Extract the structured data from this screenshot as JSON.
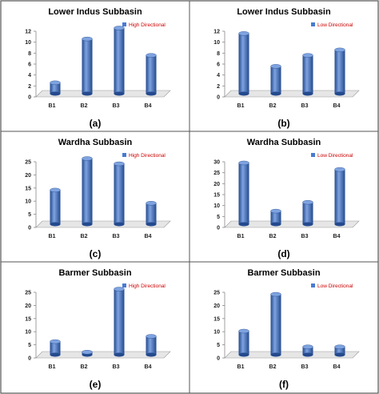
{
  "chart_data": [
    {
      "type": "bar",
      "panel": "(a)",
      "title": "Lower Indus Subbasin",
      "legend": "High Directional",
      "legend_color": "#cc0000",
      "categories": [
        "B1",
        "B2",
        "B3",
        "B4"
      ],
      "values": [
        2,
        10,
        12,
        7
      ],
      "yticks": [
        0,
        2,
        4,
        6,
        8,
        10,
        12
      ],
      "ylim": [
        0,
        12
      ]
    },
    {
      "type": "bar",
      "panel": "(b)",
      "title": "Lower Indus Subbasin",
      "legend": "Low Directional",
      "legend_color": "#cc0000",
      "categories": [
        "B1",
        "B2",
        "B3",
        "B4"
      ],
      "values": [
        11,
        5,
        7,
        8
      ],
      "yticks": [
        0,
        2,
        4,
        6,
        8,
        10,
        12
      ],
      "ylim": [
        0,
        12
      ]
    },
    {
      "type": "bar",
      "panel": "(c)",
      "title": "Wardha Subbasin",
      "legend": "High Directional",
      "legend_color": "#cc0000",
      "categories": [
        "B1",
        "B2",
        "B3",
        "B4"
      ],
      "values": [
        13,
        25,
        23,
        8
      ],
      "yticks": [
        0,
        5,
        10,
        15,
        20,
        25
      ],
      "ylim": [
        0,
        25
      ]
    },
    {
      "type": "bar",
      "panel": "(d)",
      "title": "Wardha Subbasin",
      "legend": "Low Directional",
      "legend_color": "#cc0000",
      "categories": [
        "B1",
        "B2",
        "B3",
        "B4"
      ],
      "values": [
        28,
        6,
        10,
        25
      ],
      "yticks": [
        0,
        5,
        10,
        15,
        20,
        25,
        30
      ],
      "ylim": [
        0,
        30
      ]
    },
    {
      "type": "bar",
      "panel": "(e)",
      "title": "Barmer Subbasin",
      "legend": "High Directional",
      "legend_color": "#cc0000",
      "categories": [
        "B1",
        "B2",
        "B3",
        "B4"
      ],
      "values": [
        5,
        1,
        25,
        7
      ],
      "yticks": [
        0,
        5,
        10,
        15,
        20,
        25
      ],
      "ylim": [
        0,
        25
      ]
    },
    {
      "type": "bar",
      "panel": "(f)",
      "title": "Barmer Subbasin",
      "legend": "Low Directional",
      "legend_color": "#cc0000",
      "categories": [
        "B1",
        "B2",
        "B3",
        "B4"
      ],
      "values": [
        9,
        23,
        3,
        3
      ],
      "yticks": [
        0,
        5,
        10,
        15,
        20,
        25
      ],
      "ylim": [
        0,
        25
      ]
    }
  ],
  "colors": {
    "bar": "#3d6fc4",
    "bar_dark": "#244a8e",
    "bar_light": "#7ea3e0",
    "legend_swatch": "#4a7bd0",
    "border": "#555555",
    "floor": "#e6e6e6"
  }
}
